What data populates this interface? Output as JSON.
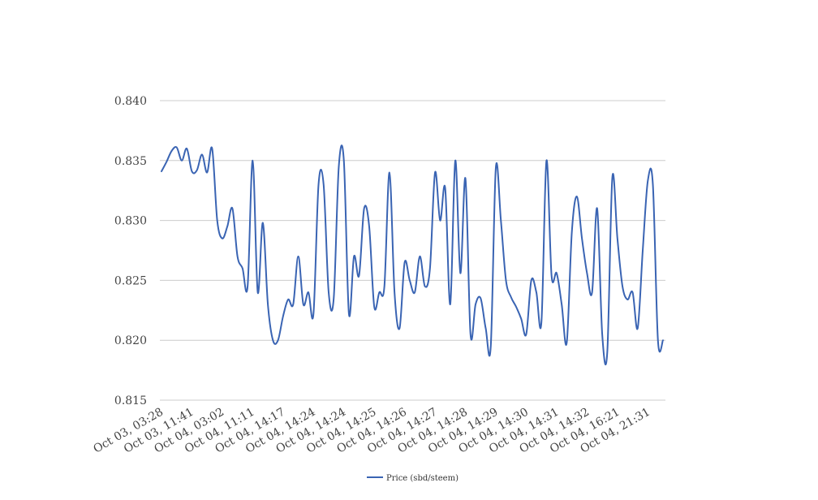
{
  "chart_data": {
    "type": "line",
    "title": "",
    "xlabel": "",
    "ylabel": "",
    "ylim": [
      0.815,
      0.84
    ],
    "y_ticks": [
      0.815,
      0.82,
      0.825,
      0.83,
      0.835,
      0.84
    ],
    "y_tick_labels": [
      "0.815",
      "0.820",
      "0.825",
      "0.830",
      "0.835",
      "0.840"
    ],
    "x_tick_labels": [
      "Oct 03, 03:28",
      "Oct 03, 11:41",
      "Oct 04, 03:02",
      "Oct 04, 11:11",
      "Oct 04, 14:17",
      "Oct 04, 14:24",
      "Oct 04, 14:24",
      "Oct 04, 14:25",
      "Oct 04, 14:26",
      "Oct 04, 14:27",
      "Oct 04, 14:28",
      "Oct 04, 14:29",
      "Oct 04, 14:30",
      "Oct 04, 14:31",
      "Oct 04, 14:32",
      "Oct 04, 16:21",
      "Oct 04, 21:31"
    ],
    "grid": true,
    "legend_position": "bottom-center",
    "series": [
      {
        "name": "Price (sbd/steem)",
        "color": "#3a64b3",
        "values": [
          0.8341,
          0.8349,
          0.8358,
          0.8361,
          0.835,
          0.836,
          0.8341,
          0.8342,
          0.8355,
          0.834,
          0.836,
          0.83,
          0.8285,
          0.8295,
          0.831,
          0.827,
          0.826,
          0.8245,
          0.835,
          0.824,
          0.8298,
          0.823,
          0.82,
          0.82,
          0.822,
          0.8234,
          0.823,
          0.827,
          0.823,
          0.824,
          0.8222,
          0.833,
          0.833,
          0.824,
          0.8235,
          0.8345,
          0.835,
          0.8222,
          0.827,
          0.8254,
          0.831,
          0.8295,
          0.8228,
          0.824,
          0.8245,
          0.834,
          0.824,
          0.821,
          0.8265,
          0.825,
          0.824,
          0.827,
          0.8245,
          0.826,
          0.834,
          0.83,
          0.8327,
          0.823,
          0.835,
          0.8256,
          0.8335,
          0.8205,
          0.823,
          0.8235,
          0.821,
          0.8195,
          0.8344,
          0.83,
          0.825,
          0.8236,
          0.8228,
          0.8218,
          0.8205,
          0.825,
          0.824,
          0.8215,
          0.835,
          0.8254,
          0.8256,
          0.823,
          0.8198,
          0.829,
          0.832,
          0.8285,
          0.8256,
          0.824,
          0.831,
          0.8205,
          0.819,
          0.8336,
          0.8285,
          0.8245,
          0.8234,
          0.824,
          0.821,
          0.8275,
          0.8333,
          0.833,
          0.82,
          0.82
        ]
      }
    ]
  }
}
